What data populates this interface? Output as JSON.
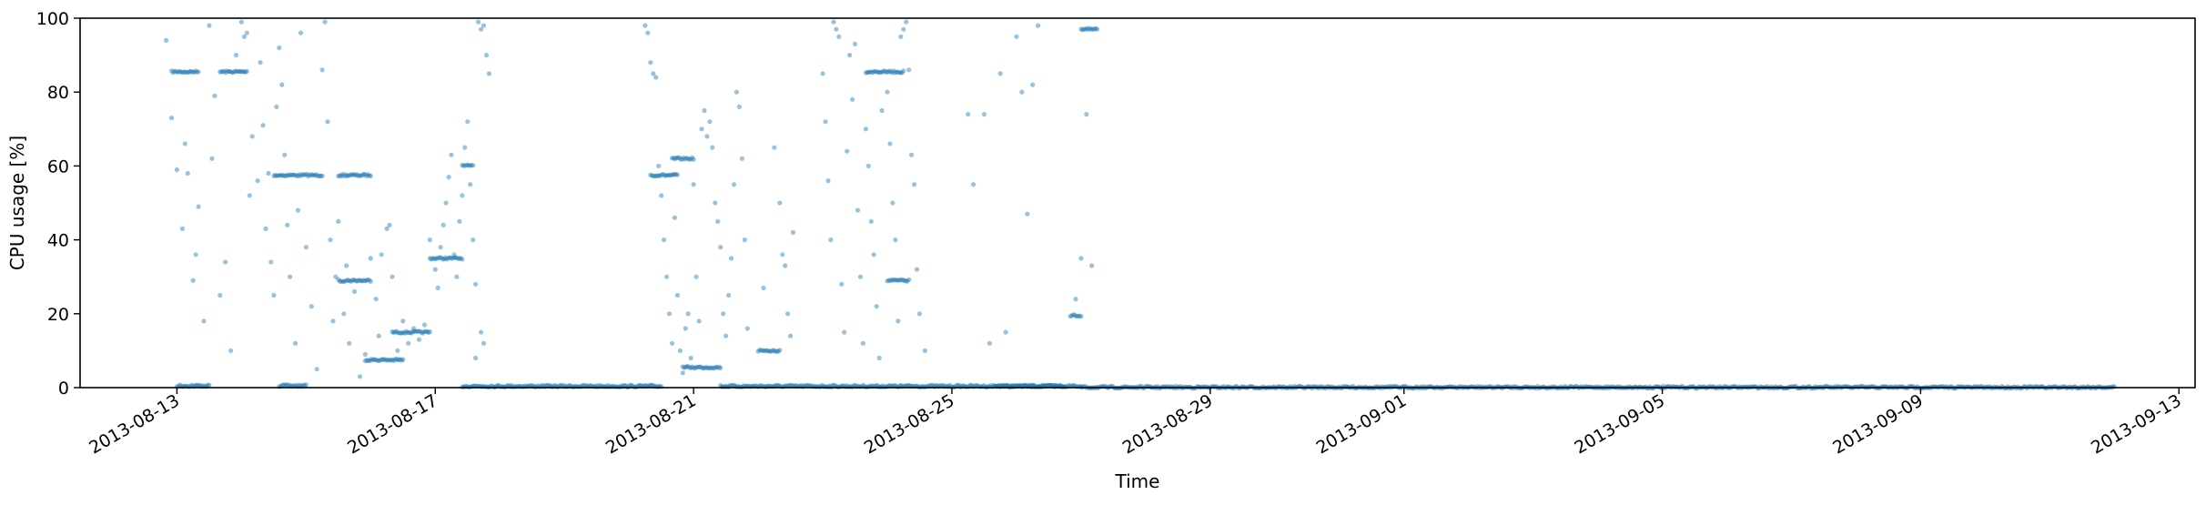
{
  "chart_data": {
    "type": "scatter",
    "title": "",
    "xlabel": "Time",
    "ylabel": "CPU usage [%]",
    "xlim": [
      "2013-08-11T12:00",
      "2013-09-13T06:00"
    ],
    "ylim": [
      0,
      100
    ],
    "x_ticks": [
      "2013-08-13",
      "2013-08-17",
      "2013-08-21",
      "2013-08-25",
      "2013-08-29",
      "2013-09-01",
      "2013-09-05",
      "2013-09-09",
      "2013-09-13"
    ],
    "y_ticks": [
      0,
      20,
      40,
      60,
      80,
      100
    ],
    "grid": false,
    "legend": "none",
    "point_color": "#1f77b4",
    "clusters": [
      {
        "from": "2013-08-12T22:00",
        "to": "2013-08-13T08:00",
        "y": 85.5
      },
      {
        "from": "2013-08-13T00:00",
        "to": "2013-08-13T12:00",
        "y": 0.5
      },
      {
        "from": "2013-08-13T16:00",
        "to": "2013-08-14T02:00",
        "y": 85.5
      },
      {
        "from": "2013-08-14T12:00",
        "to": "2013-08-15T06:00",
        "y": 57.5
      },
      {
        "from": "2013-08-14T14:00",
        "to": "2013-08-15T00:00",
        "y": 0.5
      },
      {
        "from": "2013-08-15T12:00",
        "to": "2013-08-16T00:00",
        "y": 57.5
      },
      {
        "from": "2013-08-15T12:00",
        "to": "2013-08-16T00:00",
        "y": 29
      },
      {
        "from": "2013-08-15T22:00",
        "to": "2013-08-16T12:00",
        "y": 7.5
      },
      {
        "from": "2013-08-16T08:00",
        "to": "2013-08-16T22:00",
        "y": 15
      },
      {
        "from": "2013-08-16T22:00",
        "to": "2013-08-17T10:00",
        "y": 35
      },
      {
        "from": "2013-08-17T10:00",
        "to": "2013-08-17T14:00",
        "y": 60
      },
      {
        "from": "2013-08-17T10:00",
        "to": "2013-08-20T12:00",
        "y": 0.4
      },
      {
        "from": "2013-08-20T08:00",
        "to": "2013-08-20T18:00",
        "y": 57.5
      },
      {
        "from": "2013-08-20T16:00",
        "to": "2013-08-21T00:00",
        "y": 62
      },
      {
        "from": "2013-08-20T20:00",
        "to": "2013-08-21T10:00",
        "y": 5.5
      },
      {
        "from": "2013-08-21T10:00",
        "to": "2013-08-26T18:00",
        "y": 0.4
      },
      {
        "from": "2013-08-22T00:00",
        "to": "2013-08-22T08:00",
        "y": 10
      },
      {
        "from": "2013-08-23T16:00",
        "to": "2013-08-24T06:00",
        "y": 85.5
      },
      {
        "from": "2013-08-24T00:00",
        "to": "2013-08-24T08:00",
        "y": 29
      },
      {
        "from": "2013-08-25T16:00",
        "to": "2013-08-27T00:00",
        "y": 0.4
      },
      {
        "from": "2013-08-26T20:00",
        "to": "2013-08-27T00:00",
        "y": 19.5
      },
      {
        "from": "2013-08-27T00:00",
        "to": "2013-08-27T06:00",
        "y": 97
      },
      {
        "from": "2013-08-27T00:00",
        "to": "2013-09-12T00:00",
        "y": 0.1
      }
    ],
    "points": [
      [
        "2013-08-12T20:00",
        94
      ],
      [
        "2013-08-12T22:00",
        73
      ],
      [
        "2013-08-13T00:00",
        59
      ],
      [
        "2013-08-13T02:00",
        43
      ],
      [
        "2013-08-13T03:00",
        66
      ],
      [
        "2013-08-13T04:00",
        58
      ],
      [
        "2013-08-13T06:00",
        29
      ],
      [
        "2013-08-13T07:00",
        36
      ],
      [
        "2013-08-13T08:00",
        49
      ],
      [
        "2013-08-13T10:00",
        18
      ],
      [
        "2013-08-13T12:00",
        98
      ],
      [
        "2013-08-13T13:00",
        62
      ],
      [
        "2013-08-13T14:00",
        79
      ],
      [
        "2013-08-13T16:00",
        25
      ],
      [
        "2013-08-13T18:00",
        34
      ],
      [
        "2013-08-13T20:00",
        10
      ],
      [
        "2013-08-13T22:00",
        90
      ],
      [
        "2013-08-14T00:00",
        99
      ],
      [
        "2013-08-14T01:00",
        95
      ],
      [
        "2013-08-14T02:00",
        96
      ],
      [
        "2013-08-14T03:00",
        52
      ],
      [
        "2013-08-14T04:00",
        68
      ],
      [
        "2013-08-14T06:00",
        56
      ],
      [
        "2013-08-14T07:00",
        88
      ],
      [
        "2013-08-14T08:00",
        71
      ],
      [
        "2013-08-14T09:00",
        43
      ],
      [
        "2013-08-14T10:00",
        58
      ],
      [
        "2013-08-14T11:00",
        34
      ],
      [
        "2013-08-14T12:00",
        25
      ],
      [
        "2013-08-14T13:00",
        76
      ],
      [
        "2013-08-14T14:00",
        92
      ],
      [
        "2013-08-14T15:00",
        82
      ],
      [
        "2013-08-14T16:00",
        63
      ],
      [
        "2013-08-14T17:00",
        44
      ],
      [
        "2013-08-14T18:00",
        30
      ],
      [
        "2013-08-14T20:00",
        12
      ],
      [
        "2013-08-14T21:00",
        48
      ],
      [
        "2013-08-14T22:00",
        96
      ],
      [
        "2013-08-15T00:00",
        38
      ],
      [
        "2013-08-15T02:00",
        22
      ],
      [
        "2013-08-15T04:00",
        5
      ],
      [
        "2013-08-15T06:00",
        86
      ],
      [
        "2013-08-15T07:00",
        99
      ],
      [
        "2013-08-15T08:00",
        72
      ],
      [
        "2013-08-15T09:00",
        40
      ],
      [
        "2013-08-15T10:00",
        18
      ],
      [
        "2013-08-15T11:00",
        30
      ],
      [
        "2013-08-15T12:00",
        45
      ],
      [
        "2013-08-15T14:00",
        20
      ],
      [
        "2013-08-15T15:00",
        33
      ],
      [
        "2013-08-15T16:00",
        12
      ],
      [
        "2013-08-15T18:00",
        26
      ],
      [
        "2013-08-15T20:00",
        3
      ],
      [
        "2013-08-15T22:00",
        9
      ],
      [
        "2013-08-16T00:00",
        35
      ],
      [
        "2013-08-16T02:00",
        24
      ],
      [
        "2013-08-16T03:00",
        14
      ],
      [
        "2013-08-16T04:00",
        36
      ],
      [
        "2013-08-16T06:00",
        43
      ],
      [
        "2013-08-16T07:00",
        44
      ],
      [
        "2013-08-16T08:00",
        30
      ],
      [
        "2013-08-16T10:00",
        10
      ],
      [
        "2013-08-16T12:00",
        18
      ],
      [
        "2013-08-16T14:00",
        12
      ],
      [
        "2013-08-16T16:00",
        16
      ],
      [
        "2013-08-16T18:00",
        13
      ],
      [
        "2013-08-16T20:00",
        17
      ],
      [
        "2013-08-16T22:00",
        40
      ],
      [
        "2013-08-17T00:00",
        32
      ],
      [
        "2013-08-17T01:00",
        27
      ],
      [
        "2013-08-17T02:00",
        38
      ],
      [
        "2013-08-17T03:00",
        44
      ],
      [
        "2013-08-17T04:00",
        50
      ],
      [
        "2013-08-17T05:00",
        57
      ],
      [
        "2013-08-17T06:00",
        63
      ],
      [
        "2013-08-17T07:00",
        36
      ],
      [
        "2013-08-17T08:00",
        30
      ],
      [
        "2013-08-17T09:00",
        45
      ],
      [
        "2013-08-17T10:00",
        52
      ],
      [
        "2013-08-17T11:00",
        65
      ],
      [
        "2013-08-17T12:00",
        72
      ],
      [
        "2013-08-17T13:00",
        55
      ],
      [
        "2013-08-17T14:00",
        40
      ],
      [
        "2013-08-17T15:00",
        28
      ],
      [
        "2013-08-17T16:00",
        99
      ],
      [
        "2013-08-17T17:00",
        97
      ],
      [
        "2013-08-17T18:00",
        98
      ],
      [
        "2013-08-17T19:00",
        90
      ],
      [
        "2013-08-17T20:00",
        85
      ],
      [
        "2013-08-17T17:00",
        15
      ],
      [
        "2013-08-17T18:00",
        12
      ],
      [
        "2013-08-17T15:00",
        8
      ],
      [
        "2013-08-20T06:00",
        98
      ],
      [
        "2013-08-20T07:00",
        96
      ],
      [
        "2013-08-20T08:00",
        88
      ],
      [
        "2013-08-20T09:00",
        85
      ],
      [
        "2013-08-20T10:00",
        84
      ],
      [
        "2013-08-20T11:00",
        60
      ],
      [
        "2013-08-20T12:00",
        52
      ],
      [
        "2013-08-20T13:00",
        40
      ],
      [
        "2013-08-20T14:00",
        30
      ],
      [
        "2013-08-20T15:00",
        20
      ],
      [
        "2013-08-20T16:00",
        12
      ],
      [
        "2013-08-20T17:00",
        46
      ],
      [
        "2013-08-20T18:00",
        25
      ],
      [
        "2013-08-20T19:00",
        10
      ],
      [
        "2013-08-20T20:00",
        4
      ],
      [
        "2013-08-20T21:00",
        16
      ],
      [
        "2013-08-20T22:00",
        20
      ],
      [
        "2013-08-20T23:00",
        8
      ],
      [
        "2013-08-21T00:00",
        55
      ],
      [
        "2013-08-21T01:00",
        30
      ],
      [
        "2013-08-21T02:00",
        18
      ],
      [
        "2013-08-21T03:00",
        70
      ],
      [
        "2013-08-21T04:00",
        75
      ],
      [
        "2013-08-21T05:00",
        68
      ],
      [
        "2013-08-21T06:00",
        72
      ],
      [
        "2013-08-21T07:00",
        65
      ],
      [
        "2013-08-21T08:00",
        50
      ],
      [
        "2013-08-21T09:00",
        45
      ],
      [
        "2013-08-21T10:00",
        38
      ],
      [
        "2013-08-21T11:00",
        20
      ],
      [
        "2013-08-21T12:00",
        14
      ],
      [
        "2013-08-21T13:00",
        25
      ],
      [
        "2013-08-21T14:00",
        35
      ],
      [
        "2013-08-21T15:00",
        55
      ],
      [
        "2013-08-21T16:00",
        80
      ],
      [
        "2013-08-21T17:00",
        76
      ],
      [
        "2013-08-21T18:00",
        62
      ],
      [
        "2013-08-21T19:00",
        40
      ],
      [
        "2013-08-21T20:00",
        16
      ],
      [
        "2013-08-22T02:00",
        27
      ],
      [
        "2013-08-22T06:00",
        65
      ],
      [
        "2013-08-22T08:00",
        50
      ],
      [
        "2013-08-22T09:00",
        36
      ],
      [
        "2013-08-22T10:00",
        33
      ],
      [
        "2013-08-22T11:00",
        20
      ],
      [
        "2013-08-22T12:00",
        14
      ],
      [
        "2013-08-22T13:00",
        42
      ],
      [
        "2013-08-23T00:00",
        85
      ],
      [
        "2013-08-23T01:00",
        72
      ],
      [
        "2013-08-23T02:00",
        56
      ],
      [
        "2013-08-23T03:00",
        40
      ],
      [
        "2013-08-23T04:00",
        99
      ],
      [
        "2013-08-23T05:00",
        97
      ],
      [
        "2013-08-23T06:00",
        95
      ],
      [
        "2013-08-23T07:00",
        28
      ],
      [
        "2013-08-23T08:00",
        15
      ],
      [
        "2013-08-23T09:00",
        64
      ],
      [
        "2013-08-23T10:00",
        90
      ],
      [
        "2013-08-23T11:00",
        78
      ],
      [
        "2013-08-23T12:00",
        93
      ],
      [
        "2013-08-23T13:00",
        48
      ],
      [
        "2013-08-23T14:00",
        30
      ],
      [
        "2013-08-23T15:00",
        12
      ],
      [
        "2013-08-23T16:00",
        70
      ],
      [
        "2013-08-23T17:00",
        60
      ],
      [
        "2013-08-23T18:00",
        45
      ],
      [
        "2013-08-23T19:00",
        36
      ],
      [
        "2013-08-23T20:00",
        22
      ],
      [
        "2013-08-23T21:00",
        8
      ],
      [
        "2013-08-23T22:00",
        75
      ],
      [
        "2013-08-24T00:00",
        80
      ],
      [
        "2013-08-24T01:00",
        66
      ],
      [
        "2013-08-24T02:00",
        50
      ],
      [
        "2013-08-24T03:00",
        40
      ],
      [
        "2013-08-24T04:00",
        18
      ],
      [
        "2013-08-24T05:00",
        95
      ],
      [
        "2013-08-24T06:00",
        97
      ],
      [
        "2013-08-24T07:00",
        99
      ],
      [
        "2013-08-24T08:00",
        86
      ],
      [
        "2013-08-24T09:00",
        63
      ],
      [
        "2013-08-24T10:00",
        55
      ],
      [
        "2013-08-24T11:00",
        32
      ],
      [
        "2013-08-24T12:00",
        20
      ],
      [
        "2013-08-24T14:00",
        10
      ],
      [
        "2013-08-25T06:00",
        74
      ],
      [
        "2013-08-25T08:00",
        55
      ],
      [
        "2013-08-25T12:00",
        74
      ],
      [
        "2013-08-25T14:00",
        12
      ],
      [
        "2013-08-25T18:00",
        85
      ],
      [
        "2013-08-25T20:00",
        15
      ],
      [
        "2013-08-26T00:00",
        95
      ],
      [
        "2013-08-26T02:00",
        80
      ],
      [
        "2013-08-26T04:00",
        47
      ],
      [
        "2013-08-26T06:00",
        82
      ],
      [
        "2013-08-26T08:00",
        98
      ],
      [
        "2013-08-26T22:00",
        24
      ],
      [
        "2013-08-27T00:00",
        35
      ],
      [
        "2013-08-27T02:00",
        74
      ],
      [
        "2013-08-27T04:00",
        33
      ]
    ]
  }
}
